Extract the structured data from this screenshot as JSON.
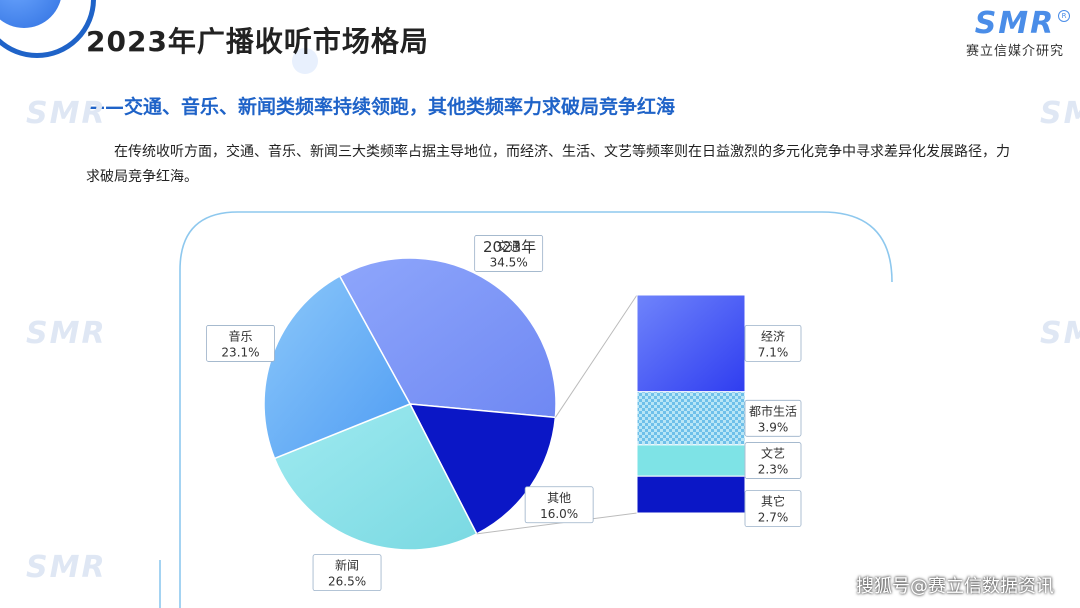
{
  "header": {
    "title": "2023年广播收听市场格局",
    "subtitle": "——交通、音乐、新闻类频率持续领跑，其他类频率力求破局竞争红海",
    "logo_mark": "SMR",
    "logo_registered": "R",
    "logo_text": "赛立信媒介研究"
  },
  "body": {
    "paragraph": "在传统收听方面，交通、音乐、新闻三大类频率占据主导地位，而经济、生活、文艺等频率则在日益激烈的多元化竞争中寻求差异化发展路径，力求破局竞争红海。"
  },
  "watermark_text": "SMR",
  "footer": {
    "note": "搜狐号@赛立信数据资讯"
  },
  "colors": {
    "title_blue": "#1f63c8",
    "frame_blue": "#8ec8ee"
  },
  "chart_data": {
    "type": "pie",
    "title": "2023年",
    "slices": [
      {
        "label": "交通",
        "value": 34.5,
        "display": "34.5%",
        "color": "#7f98f7"
      },
      {
        "label": "其他",
        "value": 16.0,
        "display": "16.0%",
        "color": "#0b17c6"
      },
      {
        "label": "新闻",
        "value": 26.5,
        "display": "26.5%",
        "color": "#8fe2e8"
      },
      {
        "label": "音乐",
        "value": 23.1,
        "display": "23.1%",
        "color": "#6fb7f7"
      }
    ],
    "breakdown_of": "其他",
    "breakdown": [
      {
        "label": "经济",
        "value": 7.1,
        "display": "7.1%",
        "color": "#4a5cf5",
        "pattern": "gradient"
      },
      {
        "label": "都市生活",
        "value": 3.9,
        "display": "3.9%",
        "color": "#8fd2ef",
        "pattern": "check"
      },
      {
        "label": "文艺",
        "value": 2.3,
        "display": "2.3%",
        "color": "#7ee3e6",
        "pattern": "solid"
      },
      {
        "label": "其它",
        "value": 2.7,
        "display": "2.7%",
        "color": "#0b17c6",
        "pattern": "solid"
      }
    ]
  }
}
